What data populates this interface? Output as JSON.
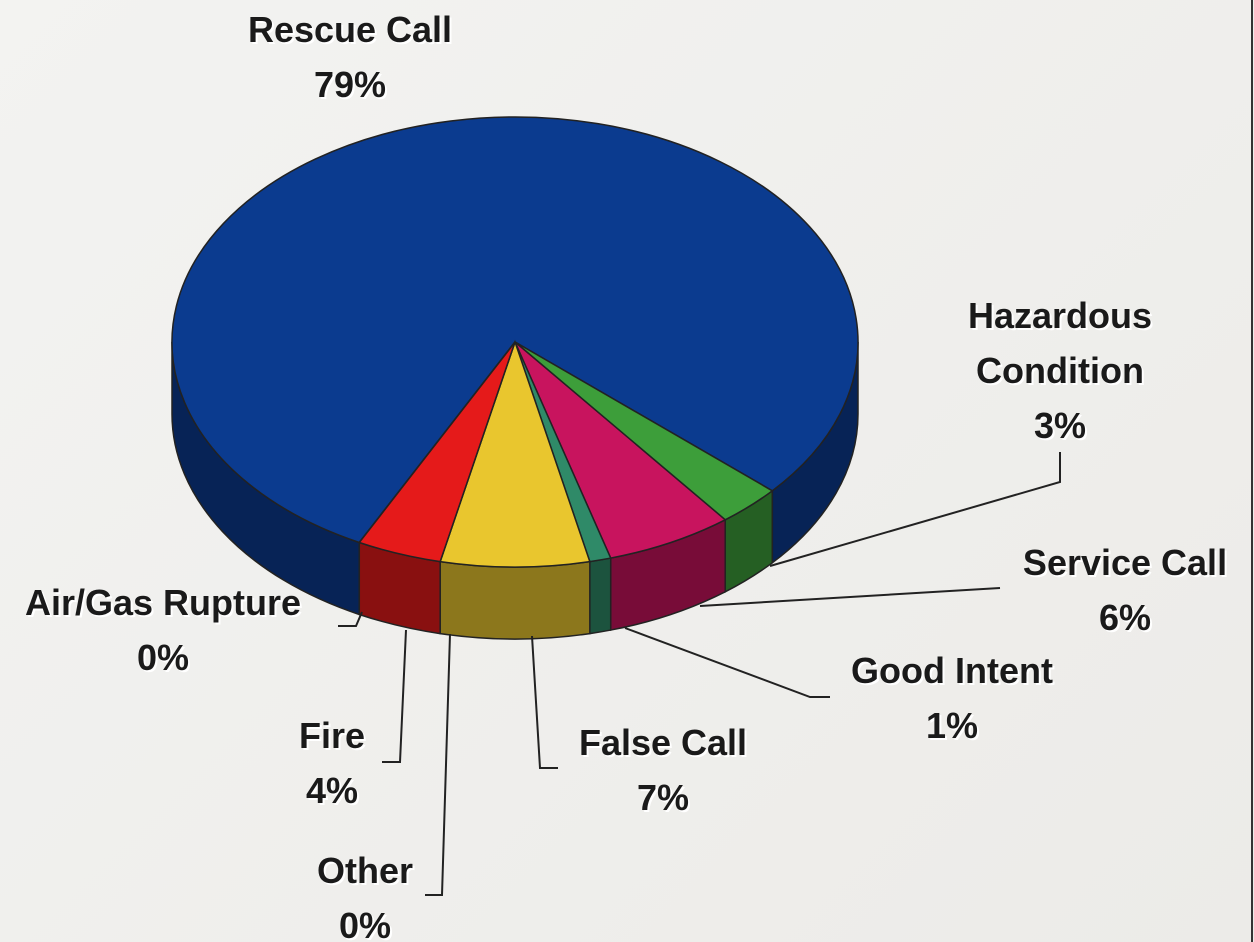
{
  "chart_data": {
    "type": "pie3d",
    "categories": [
      "Rescue Call",
      "Hazardous Condition",
      "Service Call",
      "Good Intent",
      "False Call",
      "Other",
      "Fire",
      "Air/Gas Rupture"
    ],
    "values": [
      79,
      3,
      6,
      1,
      7,
      0,
      4,
      0
    ],
    "value_labels": [
      "79%",
      "3%",
      "6%",
      "1%",
      "7%",
      "0%",
      "4%",
      "0%"
    ],
    "colors": [
      "#0b3b8f",
      "#3d9e3a",
      "#c8145e",
      "#2f8a68",
      "#e9c62e",
      "#8e5bc2",
      "#e51a1a",
      "#f08a1c"
    ]
  }
}
